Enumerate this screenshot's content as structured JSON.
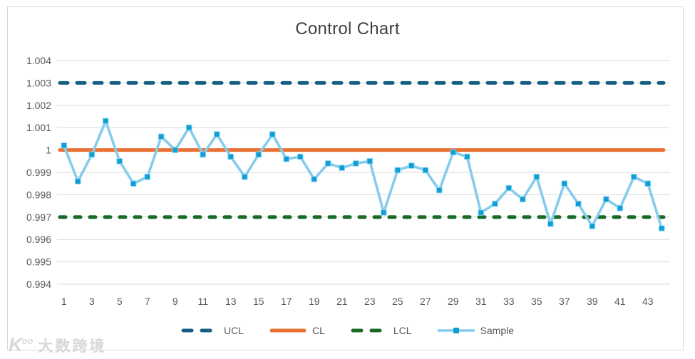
{
  "title": "Control Chart",
  "watermark": {
    "logo": "K",
    "logo_sup": "oo",
    "name": "大数跨境"
  },
  "legend": [
    {
      "label": "UCL",
      "style": "dashed",
      "color": "#156082"
    },
    {
      "label": "CL",
      "style": "solid",
      "color": "#E97132"
    },
    {
      "label": "LCL",
      "style": "dashed",
      "color": "#196B24"
    },
    {
      "label": "Sample",
      "style": "marker-line",
      "color": "#0F9ED5",
      "line_color": "#85CBEC"
    }
  ],
  "chart_data": {
    "type": "line",
    "title": "Control Chart",
    "xlabel": "",
    "ylabel": "",
    "ylim": [
      0.994,
      1.004
    ],
    "y_ticks": [
      1.004,
      1.003,
      1.002,
      1.001,
      1,
      0.999,
      0.998,
      0.997,
      0.996,
      0.995,
      0.994
    ],
    "y_tick_labels": [
      "1.004",
      "1.003",
      "1.002",
      "1.001",
      "1",
      "0.999",
      "0.998",
      "0.997",
      "0.996",
      "0.995",
      "0.994"
    ],
    "x": [
      1,
      2,
      3,
      4,
      5,
      6,
      7,
      8,
      9,
      10,
      11,
      12,
      13,
      14,
      15,
      16,
      17,
      18,
      19,
      20,
      21,
      22,
      23,
      24,
      25,
      26,
      27,
      28,
      29,
      30,
      31,
      32,
      33,
      34,
      35,
      36,
      37,
      38,
      39,
      40,
      41,
      42,
      43,
      44
    ],
    "x_tick_labels": [
      "1",
      "3",
      "5",
      "7",
      "9",
      "11",
      "13",
      "15",
      "17",
      "19",
      "21",
      "23",
      "25",
      "27",
      "29",
      "31",
      "33",
      "35",
      "37",
      "39",
      "41",
      "43"
    ],
    "grid": "horizontal",
    "grid_color": "#d9d9d9",
    "tick_color": "#595959",
    "title_color": "#404040",
    "legend_position": "bottom",
    "series": [
      {
        "name": "UCL",
        "type": "constant",
        "value": 1.003,
        "color": "#156082",
        "dash": true,
        "dash_pattern": "11 13"
      },
      {
        "name": "CL",
        "type": "constant",
        "value": 1.0,
        "color": "#E97132",
        "dash": false,
        "dash_pattern": null
      },
      {
        "name": "LCL",
        "type": "constant",
        "value": 0.997,
        "color": "#196B24",
        "dash": true,
        "dash_pattern": "8 13"
      },
      {
        "name": "Sample",
        "type": "line_markers",
        "color": "#0F9ED5",
        "line_color": "#85CBEC",
        "values": [
          1.0002,
          0.9986,
          0.9998,
          1.0013,
          0.9995,
          0.9985,
          0.9988,
          1.0006,
          1.0,
          1.001,
          0.9998,
          1.0007,
          0.9997,
          0.9988,
          0.9998,
          1.0007,
          0.9996,
          0.9997,
          0.9987,
          0.9994,
          0.9992,
          0.9994,
          0.9995,
          0.9972,
          0.9991,
          0.9993,
          0.9991,
          0.9982,
          0.9999,
          0.9997,
          0.9972,
          0.9976,
          0.9983,
          0.9978,
          0.9988,
          0.9967,
          0.9985,
          0.9976,
          0.9966,
          0.9978,
          0.9974,
          0.9988,
          0.9985,
          0.9965
        ]
      }
    ]
  }
}
